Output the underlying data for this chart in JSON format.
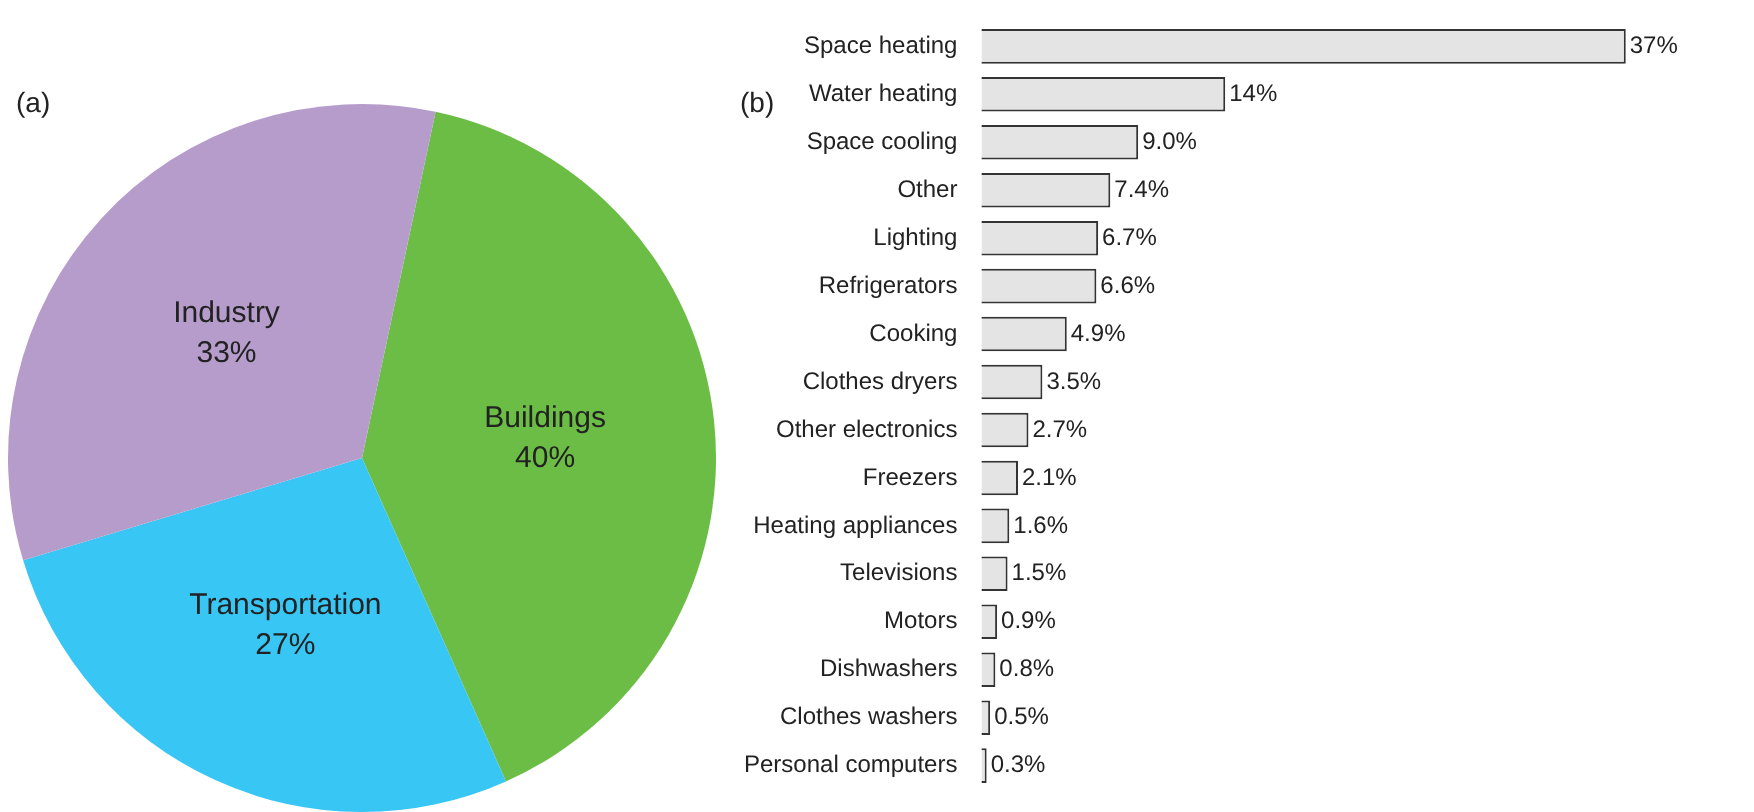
{
  "chart_data": [
    {
      "type": "pie",
      "title": "(a)",
      "categories": [
        "Buildings",
        "Transportation",
        "Industry"
      ],
      "values": [
        40,
        27,
        33
      ],
      "colors": [
        "#6cbd45",
        "#38c6f4",
        "#b59ccb"
      ],
      "value_labels": [
        "40%",
        "27%",
        "33%"
      ]
    },
    {
      "type": "bar",
      "title": "(b)",
      "orientation": "horizontal",
      "color": "#e4e4e4",
      "categories": [
        "Space heating",
        "Water heating",
        "Space cooling",
        "Other",
        "Lighting",
        "Refrigerators",
        "Cooking",
        "Clothes dryers",
        "Other electronics",
        "Freezers",
        "Heating appliances",
        "Televisions",
        "Motors",
        "Dishwashers",
        "Clothes washers",
        "Personal computers"
      ],
      "values": [
        37,
        14,
        9.0,
        7.4,
        6.7,
        6.6,
        4.9,
        3.5,
        2.7,
        2.1,
        1.6,
        1.5,
        0.9,
        0.8,
        0.5,
        0.3
      ],
      "value_labels": [
        "37%",
        "14%",
        "9.0%",
        "7.4%",
        "6.7%",
        "6.6%",
        "4.9%",
        "3.5%",
        "2.7%",
        "2.1%",
        "1.6%",
        "1.5%",
        "0.9%",
        "0.8%",
        "0.5%",
        "0.3%"
      ]
    }
  ]
}
